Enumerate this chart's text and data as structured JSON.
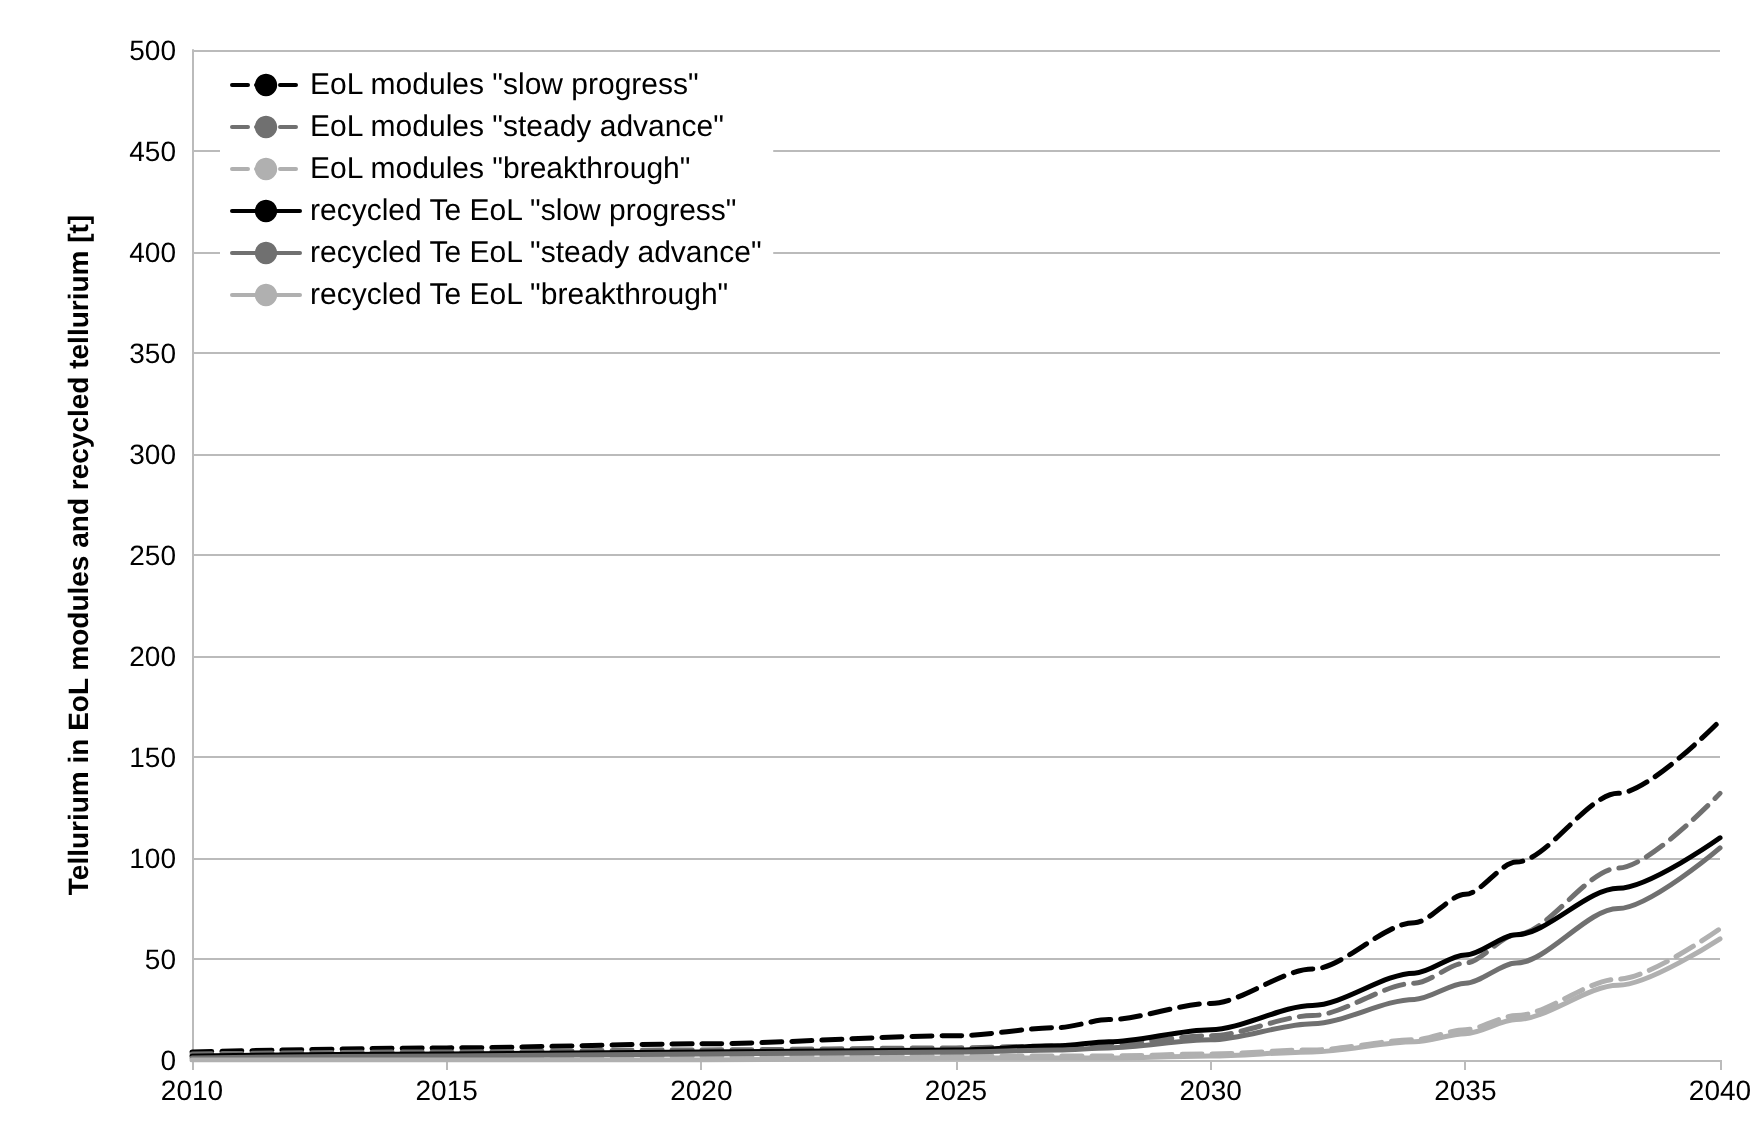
{
  "chart_data": {
    "type": "line",
    "ylabel": "Tellurium in EoL modules and recycled tellurium [t]",
    "x": [
      2010,
      2015,
      2020,
      2025,
      2027,
      2028,
      2030,
      2032,
      2034,
      2035,
      2036,
      2038,
      2040
    ],
    "xlim": [
      2010,
      2040
    ],
    "xticks": [
      2010,
      2015,
      2020,
      2025,
      2030,
      2035,
      2040
    ],
    "ylim": [
      0,
      500
    ],
    "yticks": [
      0,
      50,
      100,
      150,
      200,
      250,
      300,
      350,
      400,
      450,
      500
    ],
    "grid": "y",
    "legend": "top left",
    "marker": "none",
    "series": [
      {
        "name": "EoL modules \"slow progress\"",
        "color": "#000000",
        "line_style": "dashed",
        "values": [
          4,
          6,
          8,
          12,
          16,
          20,
          28,
          45,
          68,
          82,
          98,
          132,
          168
        ]
      },
      {
        "name": "EoL modules \"steady advance\"",
        "color": "#707070",
        "line_style": "dashed",
        "values": [
          3,
          4,
          5,
          6,
          7,
          8,
          12,
          22,
          38,
          48,
          62,
          95,
          132
        ]
      },
      {
        "name": "EoL modules \"breakthrough\"",
        "color": "#b0b0b0",
        "line_style": "dashed",
        "values": [
          2,
          2,
          2,
          2,
          2,
          2,
          3,
          5,
          10,
          15,
          22,
          40,
          65
        ]
      },
      {
        "name": "recycled Te EoL \"slow progress\"",
        "color": "#000000",
        "line_style": "solid",
        "values": [
          2,
          3,
          4,
          5,
          7,
          9,
          15,
          27,
          43,
          52,
          62,
          85,
          110
        ]
      },
      {
        "name": "recycled Te EoL \"steady advance\"",
        "color": "#707070",
        "line_style": "solid",
        "values": [
          1,
          2,
          3,
          4,
          5,
          6,
          10,
          18,
          30,
          38,
          48,
          75,
          105
        ]
      },
      {
        "name": "recycled Te EoL \"breakthrough\"",
        "color": "#b0b0b0",
        "line_style": "solid",
        "values": [
          0,
          0,
          0,
          1,
          1,
          1,
          2,
          4,
          9,
          13,
          20,
          37,
          60
        ]
      }
    ]
  }
}
